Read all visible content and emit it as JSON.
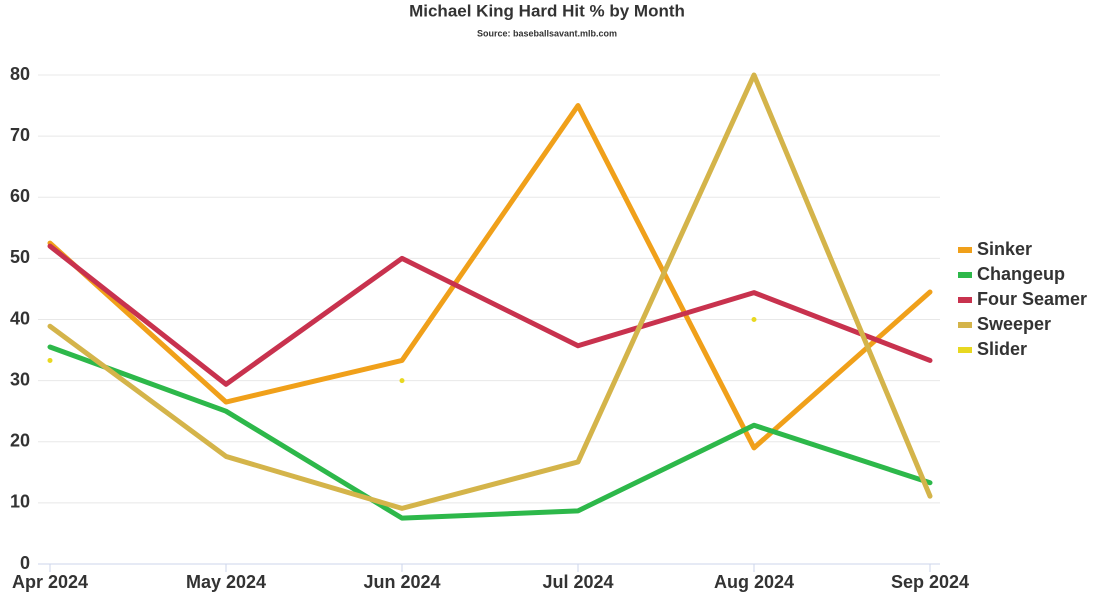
{
  "chart_data": {
    "type": "line",
    "title": "Michael King Hard Hit % by Month",
    "subtitle": "Source: baseballsavant.mlb.com",
    "categories": [
      "Apr 2024",
      "May 2024",
      "Jun 2024",
      "Jul 2024",
      "Aug 2024",
      "Sep 2024"
    ],
    "series": [
      {
        "name": "Sinker",
        "color": "#f0a01a",
        "values": [
          52.5,
          26.5,
          33.3,
          75,
          19,
          44.5
        ]
      },
      {
        "name": "Changeup",
        "color": "#2db84a",
        "values": [
          35.5,
          25,
          7.5,
          8.7,
          22.7,
          13.3
        ]
      },
      {
        "name": "Four Seamer",
        "color": "#c8324e",
        "values": [
          52,
          29.4,
          50,
          35.7,
          44.4,
          33.3
        ]
      },
      {
        "name": "Sweeper",
        "color": "#d4b44a",
        "values": [
          38.9,
          17.6,
          9.1,
          16.7,
          80,
          11.1
        ]
      },
      {
        "name": "Slider",
        "color": "#e8d820",
        "values": [
          33.3,
          null,
          30,
          null,
          40,
          null
        ]
      }
    ],
    "ylim": [
      0,
      80
    ],
    "yticks": [
      0,
      10,
      20,
      30,
      40,
      50,
      60,
      70,
      80
    ],
    "grid": true,
    "legend": "right"
  }
}
